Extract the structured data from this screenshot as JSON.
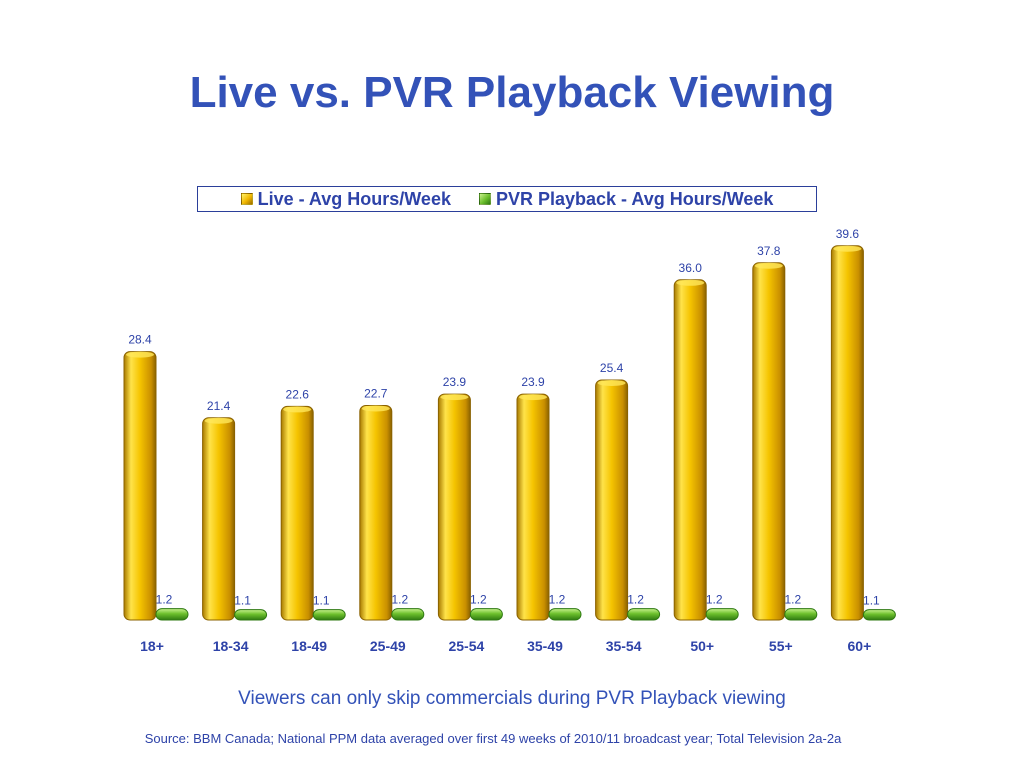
{
  "title": "Live vs. PVR Playback Viewing",
  "subtitle": "Viewers can only skip commercials during PVR Playback viewing",
  "source": "Source: BBM Canada; National PPM data averaged over first 49 weeks of 2010/11 broadcast year; Total Television 2a-2a",
  "colors": {
    "title": "#3352b8",
    "live_bar": "#f5c400",
    "pvr_bar": "#6cbf2c",
    "labels": "#2e43a8"
  },
  "chart_data": {
    "type": "bar",
    "categories": [
      "18+",
      "18-34",
      "18-49",
      "25-49",
      "25-54",
      "35-49",
      "35-54",
      "50+",
      "55+",
      "60+"
    ],
    "series": [
      {
        "name": "Live - Avg Hours/Week",
        "values": [
          28.4,
          21.4,
          22.6,
          22.7,
          23.9,
          23.9,
          25.4,
          36.0,
          37.8,
          39.6
        ]
      },
      {
        "name": "PVR Playback - Avg Hours/Week",
        "values": [
          1.2,
          1.1,
          1.1,
          1.2,
          1.2,
          1.2,
          1.2,
          1.2,
          1.2,
          1.1
        ]
      }
    ],
    "data_labels": {
      "live": [
        "28.4",
        "21.4",
        "22.6",
        "22.7",
        "23.9",
        "23.9",
        "25.4",
        "36.0",
        "37.8",
        "39.6"
      ],
      "pvr": [
        "1.2",
        "1.1",
        "1.1",
        "1.2",
        "1.2",
        "1.2",
        "1.2",
        "1.2",
        "1.2",
        "1.1"
      ]
    },
    "legend": "top",
    "grid": false,
    "ylim": [
      0,
      40
    ]
  }
}
